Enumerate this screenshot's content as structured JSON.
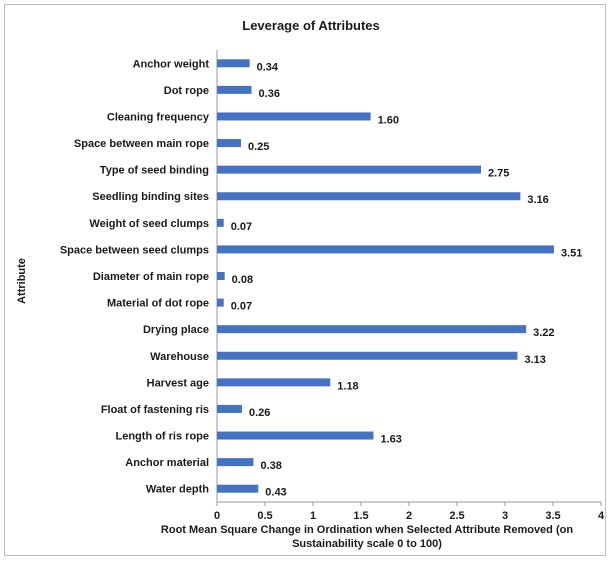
{
  "chart_data": {
    "type": "bar",
    "orientation": "horizontal",
    "title": "Leverage of Attributes",
    "ylabel": "Attribute",
    "xlabel": "Root Mean Square Change in Ordination when Selected Attribute Removed (on Sustainability scale 0 to 100)",
    "xlabel_lines": [
      "Root Mean Square Change in Ordination when Selected Attribute Removed (on",
      "Sustainability scale 0 to 100)"
    ],
    "categories": [
      "Anchor weight",
      "Dot rope",
      "Cleaning frequency",
      "Space between main rope",
      "Type of seed binding",
      "Seedling binding sites",
      "Weight of seed clumps",
      "Space between seed clumps",
      "Diameter of main rope",
      "Material of dot rope",
      "Drying place",
      "Warehouse",
      "Harvest age",
      "Float of fastening ris",
      "Length of ris rope",
      "Anchor material",
      "Water depth"
    ],
    "values": [
      0.34,
      0.36,
      1.6,
      0.25,
      2.75,
      3.16,
      0.07,
      3.51,
      0.08,
      0.07,
      3.22,
      3.13,
      1.18,
      0.26,
      1.63,
      0.38,
      0.43
    ],
    "value_labels": [
      "0.34",
      "0.36",
      "1.60",
      "0.25",
      "2.75",
      "3.16",
      "0.07",
      "3.51",
      "0.08",
      "0.07",
      "3.22",
      "3.13",
      "1.18",
      "0.26",
      "1.63",
      "0.38",
      "0.43"
    ],
    "xlim": [
      0,
      4
    ],
    "xticks": [
      "0",
      "0.5",
      "1",
      "1.5",
      "2",
      "2.5",
      "3",
      "3.5",
      "4"
    ],
    "grid": false,
    "legend": "none",
    "bar_color": "#4472c4"
  }
}
